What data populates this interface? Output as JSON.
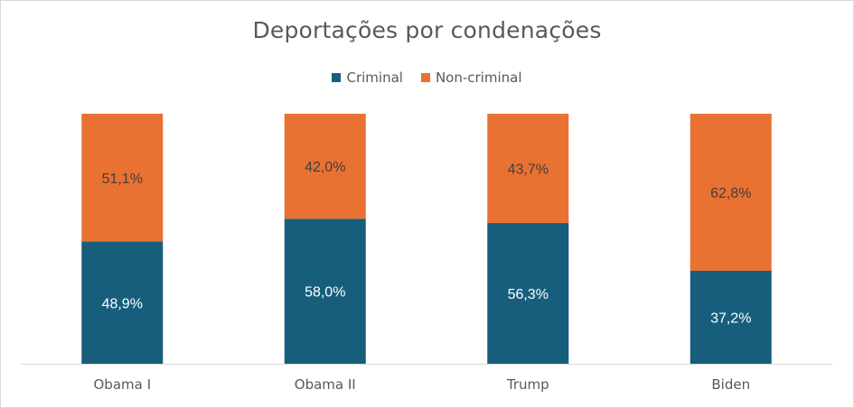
{
  "chart_data": {
    "type": "bar",
    "stacked": true,
    "title": "Deportações por condenações",
    "categories": [
      "Obama I",
      "Obama II",
      "Trump",
      "Biden"
    ],
    "series": [
      {
        "name": "Criminal",
        "color": "#175E7D",
        "values": [
          48.9,
          58.0,
          56.3,
          37.2
        ],
        "labels": [
          "48,9%",
          "58,0%",
          "56,3%",
          "37,2%"
        ]
      },
      {
        "name": "Non-criminal",
        "color": "#E97132",
        "values": [
          51.1,
          42.0,
          43.7,
          62.8
        ],
        "labels": [
          "51,1%",
          "42,0%",
          "43,7%",
          "62,8%"
        ]
      }
    ],
    "ylim": [
      0,
      100
    ],
    "grid": false,
    "legend_position": "top"
  }
}
